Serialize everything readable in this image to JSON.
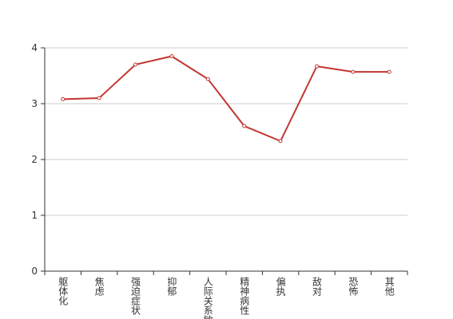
{
  "chart_data": {
    "type": "line",
    "categories": [
      "躯体化",
      "焦虑",
      "强迫症状",
      "抑郁",
      "人际关系敏感",
      "精神病性",
      "偏执",
      "敌对",
      "恐怖",
      "其他"
    ],
    "values": [
      3.08,
      3.1,
      3.7,
      3.85,
      3.44,
      2.6,
      2.33,
      3.67,
      3.57,
      3.57
    ],
    "color": "#c23531",
    "ylim": [
      0,
      4
    ],
    "yticks": [
      0,
      1,
      2,
      3,
      4
    ],
    "grid": true
  }
}
